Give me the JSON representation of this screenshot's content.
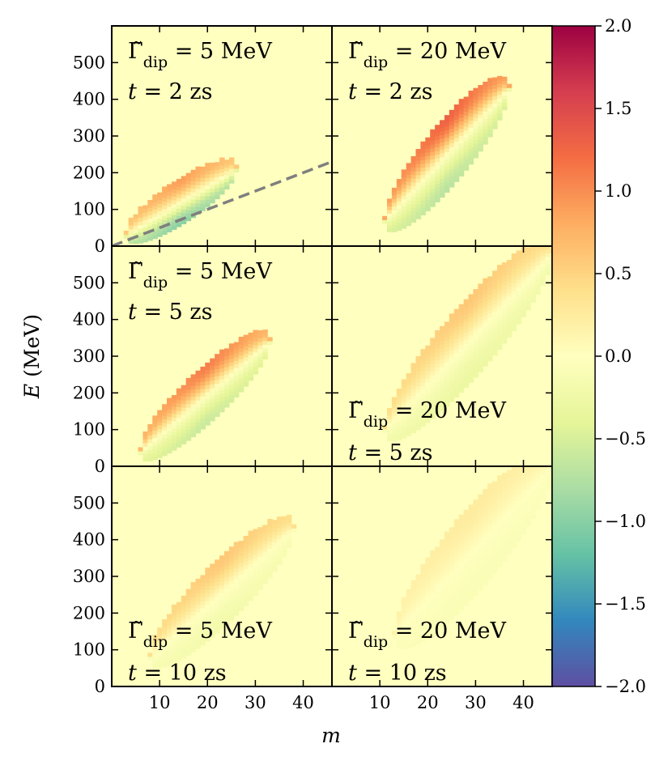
{
  "chart_data": {
    "type": "heatmap",
    "layout": "3x2 grid of panels sharing axes",
    "xlabel": "m",
    "ylabel": "E (MeV)",
    "xlim": [
      0,
      46
    ],
    "ylim": [
      0,
      600
    ],
    "x_ticks": [
      "10",
      "20",
      "30",
      "40"
    ],
    "x_tick_values": [
      10,
      20,
      30,
      40
    ],
    "y_ticks": [
      "0",
      "100",
      "200",
      "300",
      "400",
      "500"
    ],
    "y_tick_values": [
      0,
      100,
      200,
      300,
      400,
      500
    ],
    "colorbar": {
      "range": [
        -2.0,
        2.0
      ],
      "ticks": [
        "2.0",
        "1.5",
        "1.0",
        "0.5",
        "0.0",
        "−0.5",
        "−1.0",
        "−1.5",
        "−2.0"
      ],
      "tick_values": [
        2.0,
        1.5,
        1.0,
        0.5,
        0.0,
        -0.5,
        -1.0,
        -1.5,
        -2.0
      ],
      "colormap": "Spectral_r"
    },
    "background_value": 0.0,
    "panels": [
      {
        "gamma_label": "Γ̃",
        "gamma_sub": "dip",
        "gamma_value": " = 5 MeV",
        "t_label": "t",
        "t_value": " = 2 zs",
        "label_position": "top",
        "blob": {
          "m_range": [
            3,
            26
          ],
          "E_center_start": 30,
          "E_center_end": 210,
          "half_width_E": 55,
          "upper_value": 0.9,
          "lower_value": -1.0,
          "decay": 1.0
        }
      },
      {
        "gamma_label": "Γ̃",
        "gamma_sub": "dip",
        "gamma_value": " = 20 MeV",
        "t_label": "t",
        "t_value": " = 2 zs",
        "label_position": "top",
        "blob": {
          "m_range": [
            11,
            37
          ],
          "E_center_start": 70,
          "E_center_end": 430,
          "half_width_E": 95,
          "upper_value": 1.3,
          "lower_value": -0.7,
          "decay": 1.0
        }
      },
      {
        "gamma_label": "Γ̃",
        "gamma_sub": "dip",
        "gamma_value": " = 5 MeV",
        "t_label": "t",
        "t_value": " = 5 zs",
        "label_position": "top",
        "blob": {
          "m_range": [
            6,
            33
          ],
          "E_center_start": 40,
          "E_center_end": 340,
          "half_width_E": 75,
          "upper_value": 1.1,
          "lower_value": -0.6,
          "decay": 1.0
        }
      },
      {
        "gamma_label": "Γ̃",
        "gamma_sub": "dip",
        "gamma_value": " = 20 MeV",
        "t_label": "t",
        "t_value": " = 5 zs",
        "label_position": "bottom",
        "blob": {
          "m_range": [
            11,
            46
          ],
          "E_center_start": 100,
          "E_center_end": 580,
          "half_width_E": 110,
          "upper_value": 0.6,
          "lower_value": -0.3,
          "decay": 1.0
        }
      },
      {
        "gamma_label": "Γ̃",
        "gamma_sub": "dip",
        "gamma_value": " = 5 MeV",
        "t_label": "t",
        "t_value": " = 10 zs",
        "label_position": "bottom",
        "blob": {
          "m_range": [
            8,
            38
          ],
          "E_center_start": 80,
          "E_center_end": 430,
          "half_width_E": 90,
          "upper_value": 0.6,
          "lower_value": -0.2,
          "decay": 1.0
        }
      },
      {
        "gamma_label": "Γ̃",
        "gamma_sub": "dip",
        "gamma_value": " = 20 MeV",
        "t_label": "t",
        "t_value": " = 10 zs",
        "label_position": "bottom",
        "blob": {
          "m_range": [
            13,
            46
          ],
          "E_center_start": 140,
          "E_center_end": 600,
          "half_width_E": 120,
          "upper_value": 0.25,
          "lower_value": -0.1,
          "decay": 1.0
        }
      }
    ],
    "dashed_line": {
      "panel": 0,
      "from": [
        0,
        0
      ],
      "to": [
        46,
        230
      ],
      "color": "#7f7f7f"
    }
  }
}
